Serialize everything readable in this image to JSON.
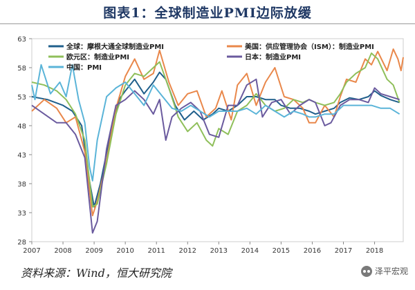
{
  "header": {
    "title": "图表1：全球制造业PMI边际放缓"
  },
  "footer": {
    "source": "资料来源：Wind，恒大研究院",
    "brand": "泽平宏观"
  },
  "icons": {
    "brand": "wechat-logo-icon"
  },
  "chart_data": {
    "type": "line",
    "title": "图表1：全球制造业PMI边际放缓",
    "xlabel": "",
    "ylabel": "",
    "xlim": [
      2007,
      2018.92
    ],
    "ylim": [
      28,
      63
    ],
    "yticks": [
      28,
      33,
      38,
      43,
      48,
      53,
      58,
      63
    ],
    "xticks": [
      "2007",
      "2008",
      "2009",
      "2010",
      "2011",
      "2012",
      "2013",
      "2014",
      "2015",
      "2016",
      "2017",
      "2018"
    ],
    "grid": false,
    "legend_position": "top",
    "series": [
      {
        "name": "全球：摩根大通全球制造业PMI",
        "color": "#1f5f8b",
        "x": [
          2007.0,
          2007.5,
          2008.0,
          2008.3,
          2008.6,
          2008.85,
          2009.0,
          2009.2,
          2009.5,
          2009.8,
          2010.0,
          2010.3,
          2010.6,
          2010.9,
          2011.1,
          2011.3,
          2011.6,
          2011.9,
          2012.2,
          2012.5,
          2012.8,
          2013.0,
          2013.3,
          2013.6,
          2013.9,
          2014.2,
          2014.5,
          2014.8,
          2015.0,
          2015.3,
          2015.6,
          2015.9,
          2016.1,
          2016.4,
          2016.7,
          2016.9,
          2017.2,
          2017.5,
          2017.8,
          2018.0,
          2018.2,
          2018.5,
          2018.8
        ],
        "y": [
          53.0,
          52.5,
          51.5,
          50.5,
          48.0,
          38.5,
          34.0,
          38.0,
          46.0,
          52.5,
          54.0,
          56.0,
          53.5,
          55.5,
          57.2,
          56.0,
          51.5,
          49.0,
          50.5,
          49.0,
          50.0,
          51.0,
          50.5,
          51.5,
          53.0,
          53.0,
          52.5,
          52.5,
          51.5,
          51.0,
          51.0,
          50.5,
          50.0,
          50.5,
          51.0,
          52.0,
          52.8,
          52.5,
          53.0,
          54.0,
          53.2,
          52.5,
          52.0
        ]
      },
      {
        "name": "美国：供应管理协会（ISM）：制造业PMI",
        "color": "#e9874a",
        "x": [
          2007.0,
          2007.4,
          2007.8,
          2008.1,
          2008.4,
          2008.7,
          2008.95,
          2009.1,
          2009.4,
          2009.7,
          2010.0,
          2010.3,
          2010.6,
          2010.9,
          2011.1,
          2011.4,
          2011.7,
          2012.0,
          2012.3,
          2012.6,
          2012.9,
          2013.1,
          2013.4,
          2013.6,
          2013.9,
          2014.2,
          2014.5,
          2014.8,
          2015.1,
          2015.4,
          2015.7,
          2015.9,
          2016.1,
          2016.4,
          2016.7,
          2016.9,
          2017.1,
          2017.4,
          2017.7,
          2017.9,
          2018.1,
          2018.4,
          2018.6,
          2018.75,
          2018.85,
          2018.92
        ],
        "y": [
          50.5,
          52.5,
          51.0,
          48.5,
          49.5,
          43.5,
          32.5,
          35.0,
          42.0,
          51.0,
          56.5,
          59.5,
          56.0,
          57.0,
          61.0,
          55.5,
          51.5,
          53.5,
          54.0,
          49.5,
          51.0,
          54.0,
          49.0,
          55.0,
          57.0,
          51.5,
          55.5,
          58.0,
          53.0,
          52.5,
          51.0,
          48.5,
          48.5,
          51.5,
          49.5,
          53.0,
          56.0,
          55.5,
          59.5,
          58.5,
          60.8,
          57.5,
          61.2,
          59.5,
          57.5,
          59.8
        ]
      },
      {
        "name": "欧元区：制造业PMI",
        "color": "#8fbf5a",
        "x": [
          2007.0,
          2007.4,
          2007.8,
          2008.1,
          2008.4,
          2008.7,
          2008.95,
          2009.1,
          2009.4,
          2009.7,
          2010.0,
          2010.3,
          2010.6,
          2010.9,
          2011.1,
          2011.4,
          2011.7,
          2012.0,
          2012.3,
          2012.6,
          2012.8,
          2013.0,
          2013.3,
          2013.6,
          2013.9,
          2014.2,
          2014.5,
          2014.8,
          2015.1,
          2015.4,
          2015.7,
          2015.9,
          2016.1,
          2016.4,
          2016.7,
          2016.9,
          2017.1,
          2017.4,
          2017.7,
          2017.9,
          2018.1,
          2018.4,
          2018.6,
          2018.8
        ],
        "y": [
          55.5,
          55.0,
          54.0,
          52.5,
          50.0,
          45.5,
          34.0,
          34.5,
          41.5,
          50.0,
          55.0,
          57.0,
          56.5,
          58.0,
          59.0,
          54.5,
          49.5,
          47.0,
          48.5,
          45.5,
          44.5,
          47.5,
          46.5,
          50.5,
          51.5,
          53.5,
          51.5,
          50.5,
          51.0,
          52.5,
          52.0,
          52.5,
          52.0,
          51.5,
          52.0,
          53.5,
          55.5,
          57.0,
          58.0,
          60.5,
          59.5,
          56.0,
          55.0,
          52.0
        ]
      },
      {
        "name": "日本：制造业PMI",
        "color": "#6a5a9e",
        "x": [
          2007.0,
          2007.4,
          2007.8,
          2008.1,
          2008.4,
          2008.7,
          2008.95,
          2009.1,
          2009.4,
          2009.7,
          2010.0,
          2010.3,
          2010.6,
          2010.9,
          2011.1,
          2011.3,
          2011.5,
          2011.8,
          2012.1,
          2012.4,
          2012.7,
          2013.0,
          2013.3,
          2013.6,
          2013.9,
          2014.2,
          2014.4,
          2014.7,
          2015.0,
          2015.3,
          2015.6,
          2015.9,
          2016.1,
          2016.4,
          2016.6,
          2016.9,
          2017.2,
          2017.5,
          2017.8,
          2018.0,
          2018.2,
          2018.5,
          2018.8
        ],
        "y": [
          51.5,
          50.0,
          48.5,
          48.5,
          46.5,
          42.5,
          29.5,
          31.5,
          44.0,
          51.5,
          52.5,
          54.0,
          52.5,
          50.0,
          52.5,
          45.5,
          49.5,
          51.0,
          52.0,
          50.5,
          46.5,
          46.0,
          51.5,
          51.5,
          55.0,
          56.0,
          49.5,
          52.0,
          52.5,
          50.0,
          51.5,
          52.5,
          52.0,
          48.0,
          48.5,
          51.5,
          52.5,
          52.5,
          52.0,
          54.5,
          53.5,
          53.0,
          52.5
        ]
      },
      {
        "name": "中国：PMI",
        "color": "#5ab4d8",
        "x": [
          2007.0,
          2007.1,
          2007.3,
          2007.6,
          2007.9,
          2008.1,
          2008.3,
          2008.5,
          2008.7,
          2008.85,
          2008.95,
          2009.1,
          2009.4,
          2009.7,
          2010.0,
          2010.3,
          2010.6,
          2010.9,
          2011.2,
          2011.5,
          2011.8,
          2012.1,
          2012.4,
          2012.7,
          2013.0,
          2013.3,
          2013.6,
          2013.9,
          2014.2,
          2014.5,
          2014.8,
          2015.1,
          2015.4,
          2015.7,
          2015.9,
          2016.1,
          2016.4,
          2016.7,
          2017.0,
          2017.3,
          2017.6,
          2017.9,
          2018.2,
          2018.5,
          2018.8
        ],
        "y": [
          55.0,
          52.5,
          58.5,
          53.5,
          55.5,
          53.0,
          58.5,
          52.5,
          48.5,
          41.0,
          38.5,
          45.5,
          53.0,
          54.5,
          55.5,
          53.5,
          51.5,
          55.0,
          53.0,
          51.0,
          50.5,
          51.5,
          50.5,
          49.5,
          50.5,
          50.5,
          50.5,
          51.0,
          50.0,
          51.5,
          50.5,
          49.5,
          50.5,
          50.0,
          49.5,
          49.5,
          50.0,
          50.0,
          51.5,
          51.5,
          51.5,
          51.5,
          51.0,
          51.0,
          50.0
        ]
      }
    ]
  }
}
